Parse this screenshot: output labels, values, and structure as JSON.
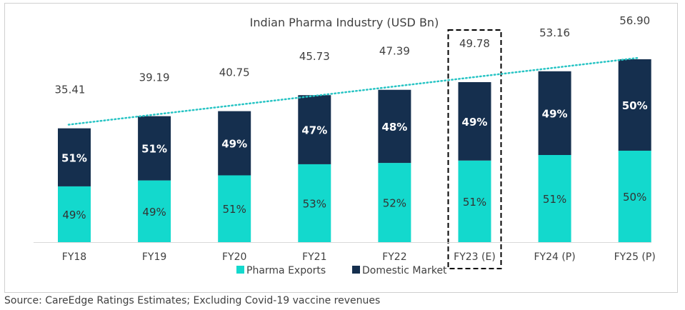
{
  "chart_data": {
    "type": "bar",
    "stacked": true,
    "title": "Indian Pharma Industry (USD Bn)",
    "categories": [
      "FY18",
      "FY19",
      "FY20",
      "FY21",
      "FY22",
      "FY23 (E)",
      "FY24 (P)",
      "FY25 (P)"
    ],
    "totals": [
      35.41,
      39.19,
      40.75,
      45.73,
      47.39,
      49.78,
      53.16,
      56.9
    ],
    "total_labels": [
      "35.41",
      "39.19",
      "40.75",
      "45.73",
      "47.39",
      "49.78",
      "53.16",
      "56.90"
    ],
    "series": [
      {
        "name": "Pharma Exports",
        "share_labels": [
          "49%",
          "49%",
          "51%",
          "53%",
          "52%",
          "51%",
          "51%",
          "50%"
        ],
        "shares": [
          49,
          49,
          51,
          53,
          52,
          51,
          51,
          50
        ],
        "color": "#13d9cd"
      },
      {
        "name": "Domestic Market",
        "share_labels": [
          "51%",
          "51%",
          "49%",
          "47%",
          "48%",
          "49%",
          "49%",
          "50%"
        ],
        "shares": [
          51,
          51,
          49,
          47,
          48,
          49,
          49,
          50
        ],
        "color": "#152f4e"
      }
    ],
    "trendline": {
      "style": "dotted",
      "color": "#27c4c4"
    },
    "highlight": {
      "category": "FY23 (E)",
      "style": "dashed-box"
    },
    "legend_position": "bottom",
    "grid": false
  },
  "footnote": "Source: CareEdge Ratings Estimates; Excluding Covid-19 vaccine revenues"
}
